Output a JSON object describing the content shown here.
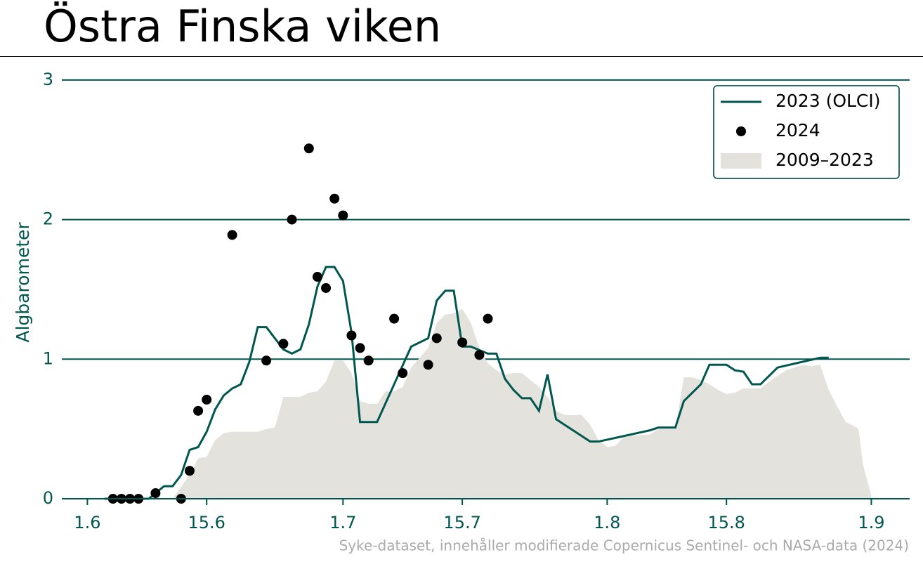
{
  "chart_data": {
    "type": "line",
    "title": "Östra Finska viken",
    "y_label": "Algbarometer",
    "source": "Syke-dataset, innehåller modifierade Copernicus Sentinel- och NASA-data (2024)",
    "xlim": [
      -3,
      96.5
    ],
    "ylim": [
      0,
      3.1
    ],
    "xticks": [
      {
        "value": 0,
        "label": "1.6"
      },
      {
        "value": 14,
        "label": "15.6"
      },
      {
        "value": 30,
        "label": "1.7"
      },
      {
        "value": 44,
        "label": "15.7"
      },
      {
        "value": 61,
        "label": "1.8"
      },
      {
        "value": 75,
        "label": "15.8"
      },
      {
        "value": 92,
        "label": "1.9"
      }
    ],
    "yticks": [
      0,
      1,
      2,
      3
    ],
    "grid": true,
    "legend": "upper right",
    "series": [
      {
        "name": "2023 (OLCI)",
        "type": "line",
        "color": "#00574f",
        "x": [
          2,
          7.2,
          9,
          10,
          11,
          12,
          13,
          14,
          15,
          16,
          17,
          18,
          19,
          20,
          21,
          22,
          23,
          24,
          25,
          26,
          27,
          28,
          29,
          30,
          31,
          32,
          34,
          36,
          38,
          40,
          41,
          42,
          43,
          44,
          45,
          47,
          48,
          49,
          50,
          51,
          52,
          53,
          54,
          55,
          59,
          60,
          66,
          67,
          69,
          70,
          72,
          73,
          75,
          76,
          77,
          78,
          79,
          81,
          86,
          87
        ],
        "values": [
          0,
          0,
          0.09,
          0.09,
          0.17,
          0.35,
          0.37,
          0.48,
          0.64,
          0.74,
          0.79,
          0.82,
          0.98,
          1.23,
          1.23,
          1.15,
          1.07,
          1.04,
          1.07,
          1.25,
          1.52,
          1.66,
          1.66,
          1.56,
          1.19,
          0.55,
          0.55,
          0.82,
          1.09,
          1.15,
          1.42,
          1.49,
          1.49,
          1.09,
          1.09,
          1.04,
          1.04,
          0.86,
          0.78,
          0.72,
          0.72,
          0.63,
          0.89,
          0.57,
          0.41,
          0.41,
          0.49,
          0.51,
          0.51,
          0.7,
          0.82,
          0.96,
          0.96,
          0.92,
          0.91,
          0.82,
          0.82,
          0.94,
          1.01,
          1.01
        ]
      },
      {
        "name": "2024",
        "type": "scatter",
        "color": "#000000",
        "x": [
          3,
          4,
          5,
          6,
          8,
          11,
          12,
          13,
          14,
          17,
          21,
          23,
          24,
          26,
          27,
          28,
          29,
          30,
          31,
          32,
          33,
          36,
          37,
          40,
          41,
          44,
          46,
          47
        ],
        "values": [
          0,
          0,
          0,
          0,
          0.04,
          0,
          0.2,
          0.63,
          0.71,
          1.89,
          0.99,
          1.11,
          2.0,
          2.51,
          1.59,
          1.51,
          2.15,
          2.03,
          1.17,
          1.08,
          0.99,
          1.29,
          0.9,
          0.96,
          1.15,
          1.12,
          1.03,
          1.29
        ]
      },
      {
        "name": "2009–2023",
        "type": "area",
        "color": "#e3e2dd",
        "x": [
          10,
          12,
          13,
          14,
          15,
          16,
          17,
          20,
          21,
          22,
          23,
          25,
          26,
          27,
          28,
          29,
          30,
          31,
          32,
          33,
          34,
          35,
          36,
          37,
          38,
          40,
          41,
          42,
          43,
          44,
          45,
          46,
          47,
          48,
          49,
          50,
          51,
          52,
          53,
          54,
          55,
          56,
          58,
          59,
          60,
          61,
          62,
          63,
          66,
          67,
          69,
          70,
          71,
          72,
          73,
          74,
          75,
          76,
          77,
          79,
          80,
          82,
          84,
          85,
          86,
          87,
          88,
          89,
          90,
          90.5,
          91,
          92
        ],
        "values": [
          0,
          0.17,
          0.29,
          0.3,
          0.42,
          0.47,
          0.48,
          0.48,
          0.5,
          0.51,
          0.73,
          0.73,
          0.76,
          0.77,
          0.84,
          0.99,
          0.99,
          0.9,
          0.7,
          0.68,
          0.68,
          0.77,
          0.77,
          0.8,
          0.94,
          1.08,
          1.26,
          1.32,
          1.33,
          1.36,
          1.26,
          1.08,
          0.97,
          0.92,
          0.89,
          0.9,
          0.9,
          0.85,
          0.8,
          0.73,
          0.63,
          0.6,
          0.6,
          0.53,
          0.42,
          0.37,
          0.38,
          0.45,
          0.46,
          0.5,
          0.5,
          0.87,
          0.87,
          0.85,
          0.82,
          0.78,
          0.75,
          0.76,
          0.79,
          0.79,
          0.84,
          0.92,
          0.96,
          0.95,
          0.96,
          0.78,
          0.66,
          0.55,
          0.52,
          0.5,
          0.25,
          0.02
        ]
      }
    ]
  }
}
